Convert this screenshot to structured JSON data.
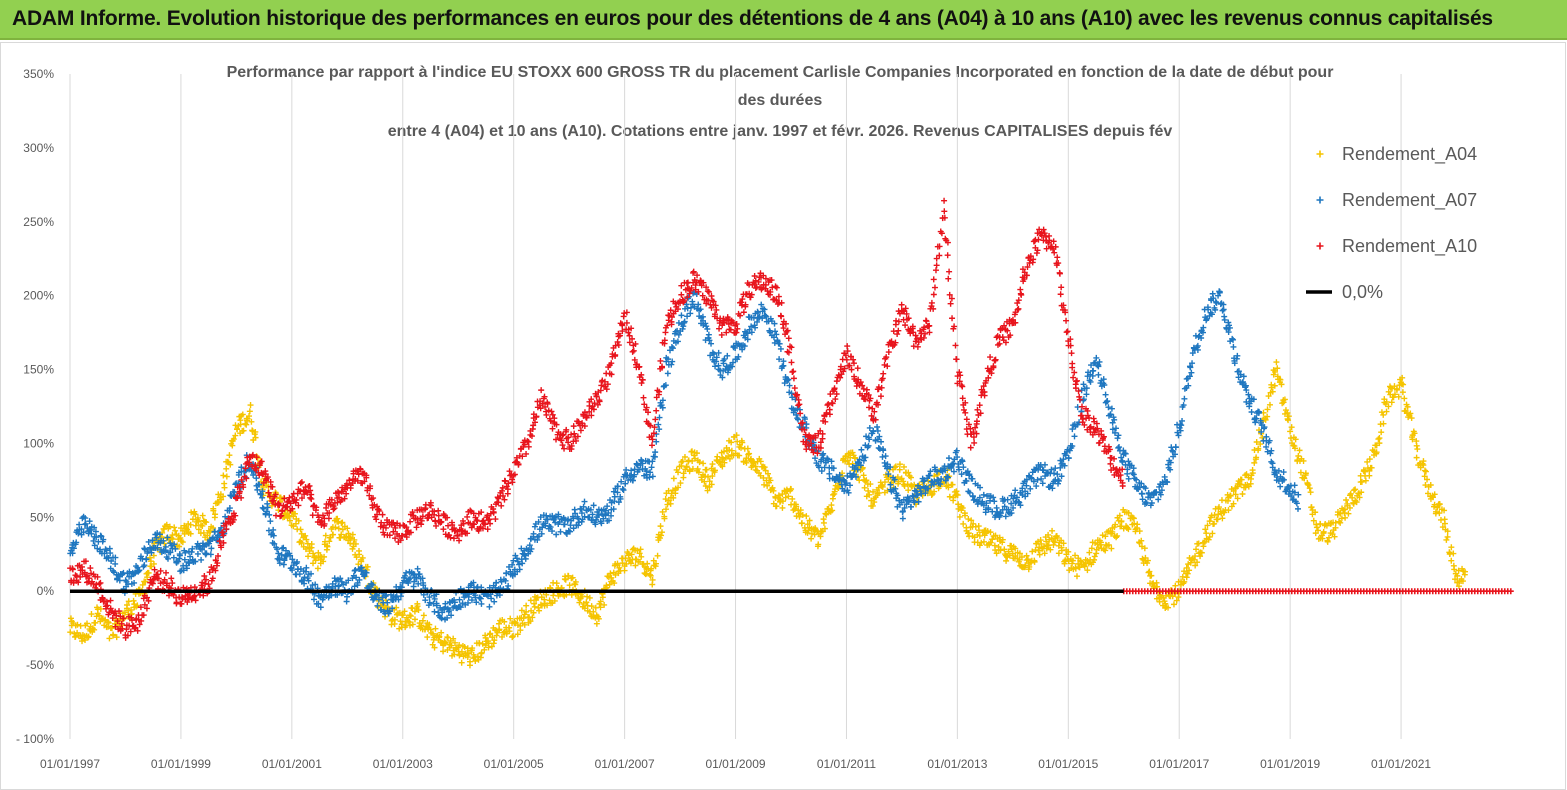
{
  "banner": {
    "title": "ADAM Informe. Evolution historique des performances en euros pour des détentions de 4 ans (A04) à 10 ans (A10) avec les revenus connus capitalisés"
  },
  "chart_data": {
    "type": "scatter",
    "title_lines": [
      "Performance par rapport à l'indice EU STOXX 600 GROSS TR  du placement Carlisle Companies Incorporated en fonction de la date de début pour",
      "des durées",
      "entre 4 (A04) et 10 ans (A10). Cotations entre janv. 1997 et févr. 2026. Revenus CAPITALISES depuis fév"
    ],
    "ylim": [
      -100,
      350
    ],
    "y_ticks": [
      "350%",
      "300%",
      "250%",
      "200%",
      "150%",
      "100%",
      "50%",
      "0%",
      "-50%",
      "- 100%"
    ],
    "x_range": [
      "1997-01-01",
      "2023-01-01"
    ],
    "x_ticks": [
      "01/01/1997",
      "01/01/1999",
      "01/01/2001",
      "01/01/2003",
      "01/01/2005",
      "01/01/2007",
      "01/01/2009",
      "01/01/2011",
      "01/01/2013",
      "01/01/2015",
      "01/01/2017",
      "01/01/2019",
      "01/01/2021"
    ],
    "grid": "vertical",
    "legend_position": "right",
    "series": [
      {
        "name": "Rendement_A04",
        "color": "#f5c400",
        "marker": "plus",
        "end": "2022-03",
        "points": [
          [
            "1997-01",
            -25
          ],
          [
            "1997-04",
            -30
          ],
          [
            "1997-07",
            -15
          ],
          [
            "1997-10",
            -30
          ],
          [
            "1998-01",
            -15
          ],
          [
            "1998-04",
            -5
          ],
          [
            "1998-07",
            25
          ],
          [
            "1998-10",
            40
          ],
          [
            "1999-01",
            35
          ],
          [
            "1999-04",
            50
          ],
          [
            "1999-07",
            40
          ],
          [
            "1999-10",
            70
          ],
          [
            "2000-01",
            110
          ],
          [
            "2000-04",
            120
          ],
          [
            "2000-07",
            70
          ],
          [
            "2000-10",
            60
          ],
          [
            "2001-01",
            50
          ],
          [
            "2001-04",
            30
          ],
          [
            "2001-07",
            20
          ],
          [
            "2001-10",
            45
          ],
          [
            "2002-01",
            40
          ],
          [
            "2002-04",
            20
          ],
          [
            "2002-07",
            0
          ],
          [
            "2002-10",
            -15
          ],
          [
            "2003-01",
            -20
          ],
          [
            "2003-04",
            -15
          ],
          [
            "2003-07",
            -30
          ],
          [
            "2003-10",
            -35
          ],
          [
            "2004-01",
            -40
          ],
          [
            "2004-04",
            -45
          ],
          [
            "2004-07",
            -35
          ],
          [
            "2004-10",
            -25
          ],
          [
            "2005-01",
            -25
          ],
          [
            "2005-04",
            -15
          ],
          [
            "2005-07",
            -5
          ],
          [
            "2005-10",
            0
          ],
          [
            "2006-01",
            5
          ],
          [
            "2006-04",
            -5
          ],
          [
            "2006-07",
            -15
          ],
          [
            "2006-10",
            10
          ],
          [
            "2007-01",
            20
          ],
          [
            "2007-04",
            25
          ],
          [
            "2007-07",
            10
          ],
          [
            "2007-10",
            60
          ],
          [
            "2008-01",
            80
          ],
          [
            "2008-04",
            90
          ],
          [
            "2008-07",
            75
          ],
          [
            "2008-10",
            90
          ],
          [
            "2009-01",
            100
          ],
          [
            "2009-04",
            90
          ],
          [
            "2009-07",
            80
          ],
          [
            "2009-10",
            60
          ],
          [
            "2010-01",
            65
          ],
          [
            "2010-04",
            45
          ],
          [
            "2010-07",
            35
          ],
          [
            "2010-10",
            60
          ],
          [
            "2011-01",
            95
          ],
          [
            "2011-04",
            80
          ],
          [
            "2011-07",
            60
          ],
          [
            "2011-10",
            75
          ],
          [
            "2012-01",
            80
          ],
          [
            "2012-04",
            65
          ],
          [
            "2012-07",
            70
          ],
          [
            "2012-10",
            80
          ],
          [
            "2013-01",
            60
          ],
          [
            "2013-04",
            40
          ],
          [
            "2013-07",
            35
          ],
          [
            "2013-10",
            30
          ],
          [
            "2014-01",
            25
          ],
          [
            "2014-04",
            20
          ],
          [
            "2014-07",
            30
          ],
          [
            "2014-10",
            35
          ],
          [
            "2015-01",
            20
          ],
          [
            "2015-04",
            15
          ],
          [
            "2015-07",
            30
          ],
          [
            "2015-10",
            35
          ],
          [
            "2016-01",
            50
          ],
          [
            "2016-04",
            40
          ],
          [
            "2016-07",
            5
          ],
          [
            "2016-10",
            -5
          ],
          [
            "2017-01",
            0
          ],
          [
            "2017-04",
            20
          ],
          [
            "2017-07",
            40
          ],
          [
            "2017-10",
            55
          ],
          [
            "2018-01",
            65
          ],
          [
            "2018-04",
            75
          ],
          [
            "2018-07",
            110
          ],
          [
            "2018-10",
            150
          ],
          [
            "2019-01",
            110
          ],
          [
            "2019-04",
            80
          ],
          [
            "2019-07",
            40
          ],
          [
            "2019-10",
            40
          ],
          [
            "2020-01",
            55
          ],
          [
            "2020-04",
            70
          ],
          [
            "2020-07",
            90
          ],
          [
            "2020-10",
            130
          ],
          [
            "2021-01",
            140
          ],
          [
            "2021-04",
            100
          ],
          [
            "2021-07",
            70
          ],
          [
            "2021-10",
            50
          ],
          [
            "2022-01",
            10
          ],
          [
            "2022-03",
            10
          ]
        ]
      },
      {
        "name": "Rendement_A07",
        "color": "#1f77c0",
        "marker": "plus",
        "end": "2019-03",
        "points": [
          [
            "1997-01",
            25
          ],
          [
            "1997-04",
            45
          ],
          [
            "1997-07",
            35
          ],
          [
            "1997-10",
            20
          ],
          [
            "1998-01",
            5
          ],
          [
            "1998-04",
            15
          ],
          [
            "1998-07",
            35
          ],
          [
            "1998-10",
            30
          ],
          [
            "1999-01",
            20
          ],
          [
            "1999-04",
            25
          ],
          [
            "1999-07",
            30
          ],
          [
            "1999-10",
            40
          ],
          [
            "2000-01",
            70
          ],
          [
            "2000-04",
            90
          ],
          [
            "2000-07",
            60
          ],
          [
            "2000-10",
            25
          ],
          [
            "2001-01",
            20
          ],
          [
            "2001-04",
            10
          ],
          [
            "2001-07",
            -5
          ],
          [
            "2001-10",
            5
          ],
          [
            "2002-01",
            0
          ],
          [
            "2002-04",
            15
          ],
          [
            "2002-07",
            -5
          ],
          [
            "2002-10",
            -10
          ],
          [
            "2003-01",
            5
          ],
          [
            "2003-04",
            10
          ],
          [
            "2003-07",
            -5
          ],
          [
            "2003-10",
            -15
          ],
          [
            "2004-01",
            -5
          ],
          [
            "2004-04",
            0
          ],
          [
            "2004-07",
            -5
          ],
          [
            "2004-10",
            0
          ],
          [
            "2005-01",
            15
          ],
          [
            "2005-04",
            30
          ],
          [
            "2005-07",
            45
          ],
          [
            "2005-10",
            45
          ],
          [
            "2006-01",
            45
          ],
          [
            "2006-04",
            55
          ],
          [
            "2006-07",
            50
          ],
          [
            "2006-10",
            55
          ],
          [
            "2007-01",
            75
          ],
          [
            "2007-04",
            85
          ],
          [
            "2007-07",
            80
          ],
          [
            "2007-10",
            150
          ],
          [
            "2008-01",
            180
          ],
          [
            "2008-04",
            200
          ],
          [
            "2008-07",
            170
          ],
          [
            "2008-10",
            150
          ],
          [
            "2009-01",
            160
          ],
          [
            "2009-04",
            180
          ],
          [
            "2009-07",
            190
          ],
          [
            "2009-10",
            170
          ],
          [
            "2010-01",
            130
          ],
          [
            "2010-04",
            110
          ],
          [
            "2010-07",
            90
          ],
          [
            "2010-10",
            80
          ],
          [
            "2011-01",
            70
          ],
          [
            "2011-04",
            90
          ],
          [
            "2011-07",
            110
          ],
          [
            "2011-10",
            80
          ],
          [
            "2012-01",
            55
          ],
          [
            "2012-04",
            65
          ],
          [
            "2012-07",
            75
          ],
          [
            "2012-10",
            80
          ],
          [
            "2013-01",
            90
          ],
          [
            "2013-04",
            70
          ],
          [
            "2013-07",
            60
          ],
          [
            "2013-10",
            55
          ],
          [
            "2014-01",
            60
          ],
          [
            "2014-04",
            70
          ],
          [
            "2014-07",
            80
          ],
          [
            "2014-10",
            75
          ],
          [
            "2015-01",
            90
          ],
          [
            "2015-04",
            130
          ],
          [
            "2015-07",
            160
          ],
          [
            "2015-10",
            120
          ],
          [
            "2016-01",
            90
          ],
          [
            "2016-04",
            70
          ],
          [
            "2016-07",
            60
          ],
          [
            "2016-10",
            75
          ],
          [
            "2017-01",
            110
          ],
          [
            "2017-04",
            160
          ],
          [
            "2017-07",
            190
          ],
          [
            "2017-10",
            200
          ],
          [
            "2018-01",
            160
          ],
          [
            "2018-04",
            130
          ],
          [
            "2018-07",
            110
          ],
          [
            "2018-10",
            80
          ],
          [
            "2019-01",
            70
          ],
          [
            "2019-03",
            60
          ]
        ]
      },
      {
        "name": "Rendement_A10",
        "color": "#e8141c",
        "marker": "plus",
        "end": "2016-01",
        "zero_band": [
          "2016-01",
          "2023-01"
        ],
        "points": [
          [
            "1997-01",
            10
          ],
          [
            "1997-04",
            15
          ],
          [
            "1997-07",
            5
          ],
          [
            "1997-10",
            -15
          ],
          [
            "1998-01",
            -25
          ],
          [
            "1998-04",
            -20
          ],
          [
            "1998-07",
            10
          ],
          [
            "1998-10",
            5
          ],
          [
            "1999-01",
            -5
          ],
          [
            "1999-04",
            0
          ],
          [
            "1999-07",
            5
          ],
          [
            "1999-10",
            35
          ],
          [
            "2000-01",
            60
          ],
          [
            "2000-04",
            90
          ],
          [
            "2000-07",
            80
          ],
          [
            "2000-10",
            55
          ],
          [
            "2001-01",
            60
          ],
          [
            "2001-04",
            70
          ],
          [
            "2001-07",
            45
          ],
          [
            "2001-10",
            60
          ],
          [
            "2002-01",
            70
          ],
          [
            "2002-04",
            80
          ],
          [
            "2002-07",
            55
          ],
          [
            "2002-10",
            40
          ],
          [
            "2003-01",
            40
          ],
          [
            "2003-04",
            50
          ],
          [
            "2003-07",
            55
          ],
          [
            "2003-10",
            45
          ],
          [
            "2004-01",
            40
          ],
          [
            "2004-04",
            50
          ],
          [
            "2004-07",
            45
          ],
          [
            "2004-10",
            60
          ],
          [
            "2005-01",
            80
          ],
          [
            "2005-04",
            100
          ],
          [
            "2005-07",
            130
          ],
          [
            "2005-10",
            110
          ],
          [
            "2006-01",
            100
          ],
          [
            "2006-04",
            115
          ],
          [
            "2006-07",
            130
          ],
          [
            "2006-10",
            150
          ],
          [
            "2007-01",
            185
          ],
          [
            "2007-04",
            155
          ],
          [
            "2007-07",
            100
          ],
          [
            "2007-10",
            180
          ],
          [
            "2008-01",
            200
          ],
          [
            "2008-04",
            210
          ],
          [
            "2008-07",
            200
          ],
          [
            "2008-10",
            180
          ],
          [
            "2009-01",
            180
          ],
          [
            "2009-04",
            205
          ],
          [
            "2009-07",
            210
          ],
          [
            "2009-10",
            200
          ],
          [
            "2010-01",
            160
          ],
          [
            "2010-04",
            100
          ],
          [
            "2010-07",
            100
          ],
          [
            "2010-10",
            130
          ],
          [
            "2011-01",
            160
          ],
          [
            "2011-04",
            140
          ],
          [
            "2011-07",
            120
          ],
          [
            "2011-10",
            160
          ],
          [
            "2012-01",
            190
          ],
          [
            "2012-04",
            170
          ],
          [
            "2012-07",
            180
          ],
          [
            "2012-10",
            260
          ],
          [
            "2013-01",
            150
          ],
          [
            "2013-04",
            100
          ],
          [
            "2013-07",
            140
          ],
          [
            "2013-10",
            170
          ],
          [
            "2014-01",
            180
          ],
          [
            "2014-04",
            220
          ],
          [
            "2014-07",
            240
          ],
          [
            "2014-10",
            235
          ],
          [
            "2015-01",
            170
          ],
          [
            "2015-04",
            120
          ],
          [
            "2015-07",
            110
          ],
          [
            "2015-10",
            90
          ],
          [
            "2016-01",
            75
          ]
        ]
      },
      {
        "name": "0,0%",
        "color": "#000000",
        "type": "line",
        "x": [
          "1997-01-01",
          "2016-01-01"
        ],
        "values": [
          0,
          0
        ]
      }
    ]
  }
}
